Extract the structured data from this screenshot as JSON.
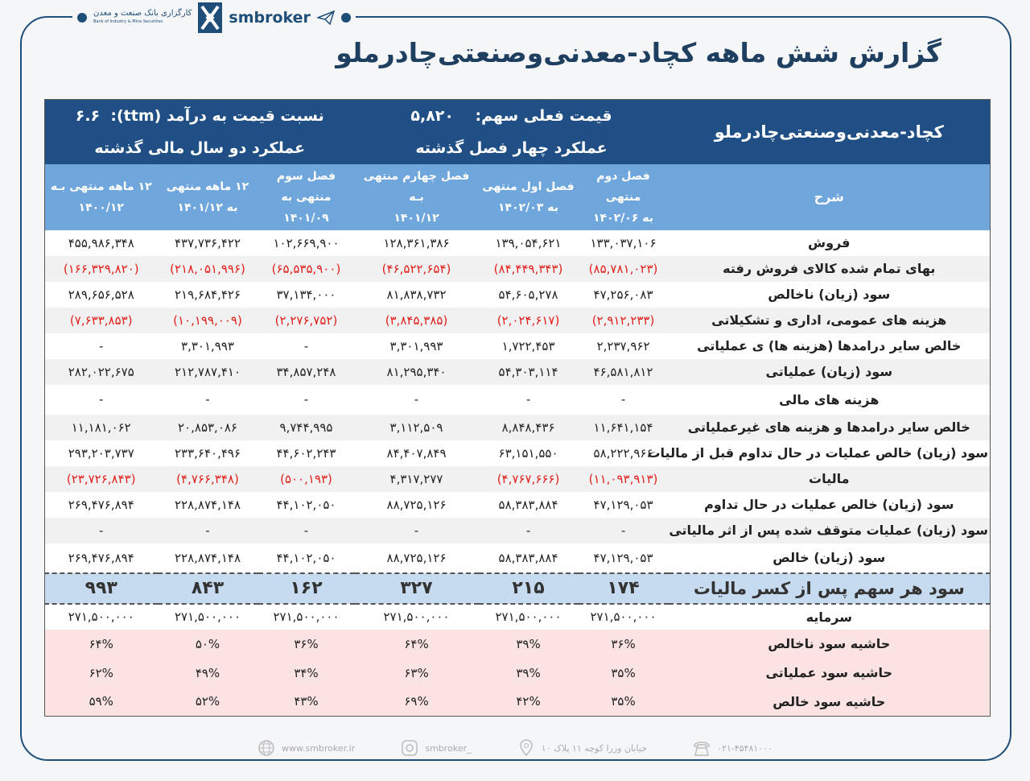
{
  "brand": {
    "name": "smbroker",
    "logo_fa": "کارگزاری بانک صنعت و معدن",
    "logo_en": "Bank of Industry & Mine Securities",
    "color": "#1f4e79"
  },
  "title": "گزارش شش ماهه کچاد-معدنی‌وصنعتی‌چادرملو",
  "header": {
    "company": "کچاد-معدنی‌وصنعتی‌چادرملو",
    "price_label": "قیمت فعلی سهم:",
    "price": "۵,۸۲۰",
    "pe_label": "نسبت  قیمت به درآمد (ttm):",
    "pe": "۶.۶",
    "group_quarters": "عملکرد چهار فصل گذشته",
    "group_years": "عملکرد دو سال مالی گذشته",
    "desc": "شرح",
    "columns": [
      [
        "فصل دوم منتهی",
        "به ۱۴۰۲/۰۶"
      ],
      [
        "فصل اول منتهی",
        "به ۱۴۰۲/۰۳"
      ],
      [
        "فصل چهارم منتهی بـه",
        "۱۴۰۱/۱۲"
      ],
      [
        "فصل سوم",
        "منتهی به",
        "۱۴۰۱/۰۹"
      ],
      [
        "۱۲ ماهه منتهی",
        "به ۱۴۰۱/۱۲"
      ],
      [
        "۱۲ ماهه منتهی بـه",
        "۱۴۰۰/۱۲"
      ]
    ]
  },
  "rows": [
    {
      "label": "فروش",
      "values": [
        "۱۳۳,۰۳۷,۱۰۶",
        "۱۳۹,۰۵۴,۶۲۱",
        "۱۲۸,۳۶۱,۳۸۶",
        "۱۰۲,۶۶۹,۹۰۰",
        "۴۳۷,۷۳۶,۴۲۲",
        "۴۵۵,۹۸۶,۳۴۸"
      ]
    },
    {
      "label": "بهای تمام شده کالای فروش رفته",
      "values": [
        "(۸۵,۷۸۱,۰۲۳)",
        "(۸۴,۴۴۹,۳۴۳)",
        "(۴۶,۵۲۲,۶۵۴)",
        "(۶۵,۵۳۵,۹۰۰)",
        "(۲۱۸,۰۵۱,۹۹۶)",
        "(۱۶۶,۳۲۹,۸۲۰)"
      ]
    },
    {
      "label": "سود (زیان) ناخالص",
      "values": [
        "۴۷,۲۵۶,۰۸۳",
        "۵۴,۶۰۵,۲۷۸",
        "۸۱,۸۳۸,۷۳۲",
        "۳۷,۱۳۴,۰۰۰",
        "۲۱۹,۶۸۴,۴۲۶",
        "۲۸۹,۶۵۶,۵۲۸"
      ]
    },
    {
      "label": "هزینه های عمومی، اداری و تشکیلاتی",
      "values": [
        "(۲,۹۱۲,۲۳۳)",
        "(۲,۰۲۴,۶۱۷)",
        "(۳,۸۴۵,۳۸۵)",
        "(۲,۲۷۶,۷۵۲)",
        "(۱۰,۱۹۹,۰۰۹)",
        "(۷,۶۳۳,۸۵۳)"
      ]
    },
    {
      "label": "خالص سایر درامدها (هزینه ها) ی عملیاتی",
      "values": [
        "۲,۲۳۷,۹۶۲",
        "۱,۷۲۲,۴۵۳",
        "۳,۳۰۱,۹۹۳",
        "-",
        "۳,۳۰۱,۹۹۳",
        "-"
      ]
    },
    {
      "label": "سود (زیان) عملیاتی",
      "values": [
        "۴۶,۵۸۱,۸۱۲",
        "۵۴,۳۰۳,۱۱۴",
        "۸۱,۲۹۵,۳۴۰",
        "۳۴,۸۵۷,۲۴۸",
        "۲۱۲,۷۸۷,۴۱۰",
        "۲۸۲,۰۲۲,۶۷۵"
      ]
    },
    {
      "label": "هزینه های مالی",
      "values": [
        "-",
        "-",
        "-",
        "-",
        "-",
        "-"
      ]
    },
    {
      "label": "خالص سایر درامدها و هزینه های غیرعملیاتی",
      "values": [
        "۱۱,۶۴۱,۱۵۴",
        "۸,۸۴۸,۴۳۶",
        "۳,۱۱۲,۵۰۹",
        "۹,۷۴۴,۹۹۵",
        "۲۰,۸۵۳,۰۸۶",
        "۱۱,۱۸۱,۰۶۲"
      ]
    },
    {
      "label": "سود (زیان) خالص عملیات در حال تداوم قبل از مالیات",
      "values": [
        "۵۸,۲۲۲,۹۶۶",
        "۶۳,۱۵۱,۵۵۰",
        "۸۴,۴۰۷,۸۴۹",
        "۴۴,۶۰۲,۲۴۳",
        "۲۳۳,۶۴۰,۴۹۶",
        "۲۹۳,۲۰۳,۷۳۷"
      ]
    },
    {
      "label": "مالیات",
      "values": [
        "(۱۱,۰۹۳,۹۱۳)",
        "(۴,۷۶۷,۶۶۶)",
        "۴,۳۱۷,۲۷۷",
        "(۵۰۰,۱۹۳)",
        "(۴,۷۶۶,۳۴۸)",
        "(۲۳,۷۲۶,۸۴۳)"
      ]
    },
    {
      "label": "سود (زیان) خالص عملیات در حال تداوم",
      "values": [
        "۴۷,۱۲۹,۰۵۳",
        "۵۸,۳۸۳,۸۸۴",
        "۸۸,۷۲۵,۱۲۶",
        "۴۴,۱۰۲,۰۵۰",
        "۲۲۸,۸۷۴,۱۴۸",
        "۲۶۹,۴۷۶,۸۹۴"
      ]
    },
    {
      "label": "سود (زیان) عملیات متوقف شده پس از اثر مالیاتی",
      "values": [
        "-",
        "-",
        "-",
        "-",
        "-",
        "-"
      ]
    },
    {
      "label": "سود (زیان) خالص",
      "values": [
        "۴۷,۱۲۹,۰۵۳",
        "۵۸,۳۸۳,۸۸۴",
        "۸۸,۷۲۵,۱۲۶",
        "۴۴,۱۰۲,۰۵۰",
        "۲۲۸,۸۷۴,۱۴۸",
        "۲۶۹,۴۷۶,۸۹۴"
      ]
    }
  ],
  "eps": {
    "label": "سود هر سهم پس از کسر مالیات",
    "values": [
      "۱۷۴",
      "۲۱۵",
      "۳۲۷",
      "۱۶۲",
      "۸۴۳",
      "۹۹۳"
    ]
  },
  "capital": {
    "label": "سرمایه",
    "values": [
      "۲۷۱,۵۰۰,۰۰۰",
      "۲۷۱,۵۰۰,۰۰۰",
      "۲۷۱,۵۰۰,۰۰۰",
      "۲۷۱,۵۰۰,۰۰۰",
      "۲۷۱,۵۰۰,۰۰۰",
      "۲۷۱,۵۰۰,۰۰۰"
    ]
  },
  "margins": [
    {
      "label": "حاشیه سود ناخالص",
      "values": [
        "۳۶%",
        "۳۹%",
        "۶۴%",
        "۳۶%",
        "۵۰%",
        "۶۴%"
      ]
    },
    {
      "label": "حاشیه سود عملیاتی",
      "values": [
        "۳۵%",
        "۳۹%",
        "۶۳%",
        "۳۴%",
        "۴۹%",
        "۶۲%"
      ]
    },
    {
      "label": "حاشیه سود خالص",
      "values": [
        "۳۵%",
        "۴۲%",
        "۶۹%",
        "۴۳%",
        "۵۲%",
        "۵۹%"
      ]
    }
  ],
  "footer": {
    "website": "www.smbroker.ir",
    "instagram": "smbroker_",
    "address": "خیابان وزرا کوچه ۱۱ پلاک ۱۰",
    "phone": "۰۲۱-۴۵۴۸۱۰۰۰"
  },
  "colors": {
    "negative": "#e0201c",
    "header_dark": "#1f4f85",
    "header_light": "#6fa6dc",
    "eps_row": "#c6dbf0",
    "margin_rows": "#fbe3e3"
  }
}
